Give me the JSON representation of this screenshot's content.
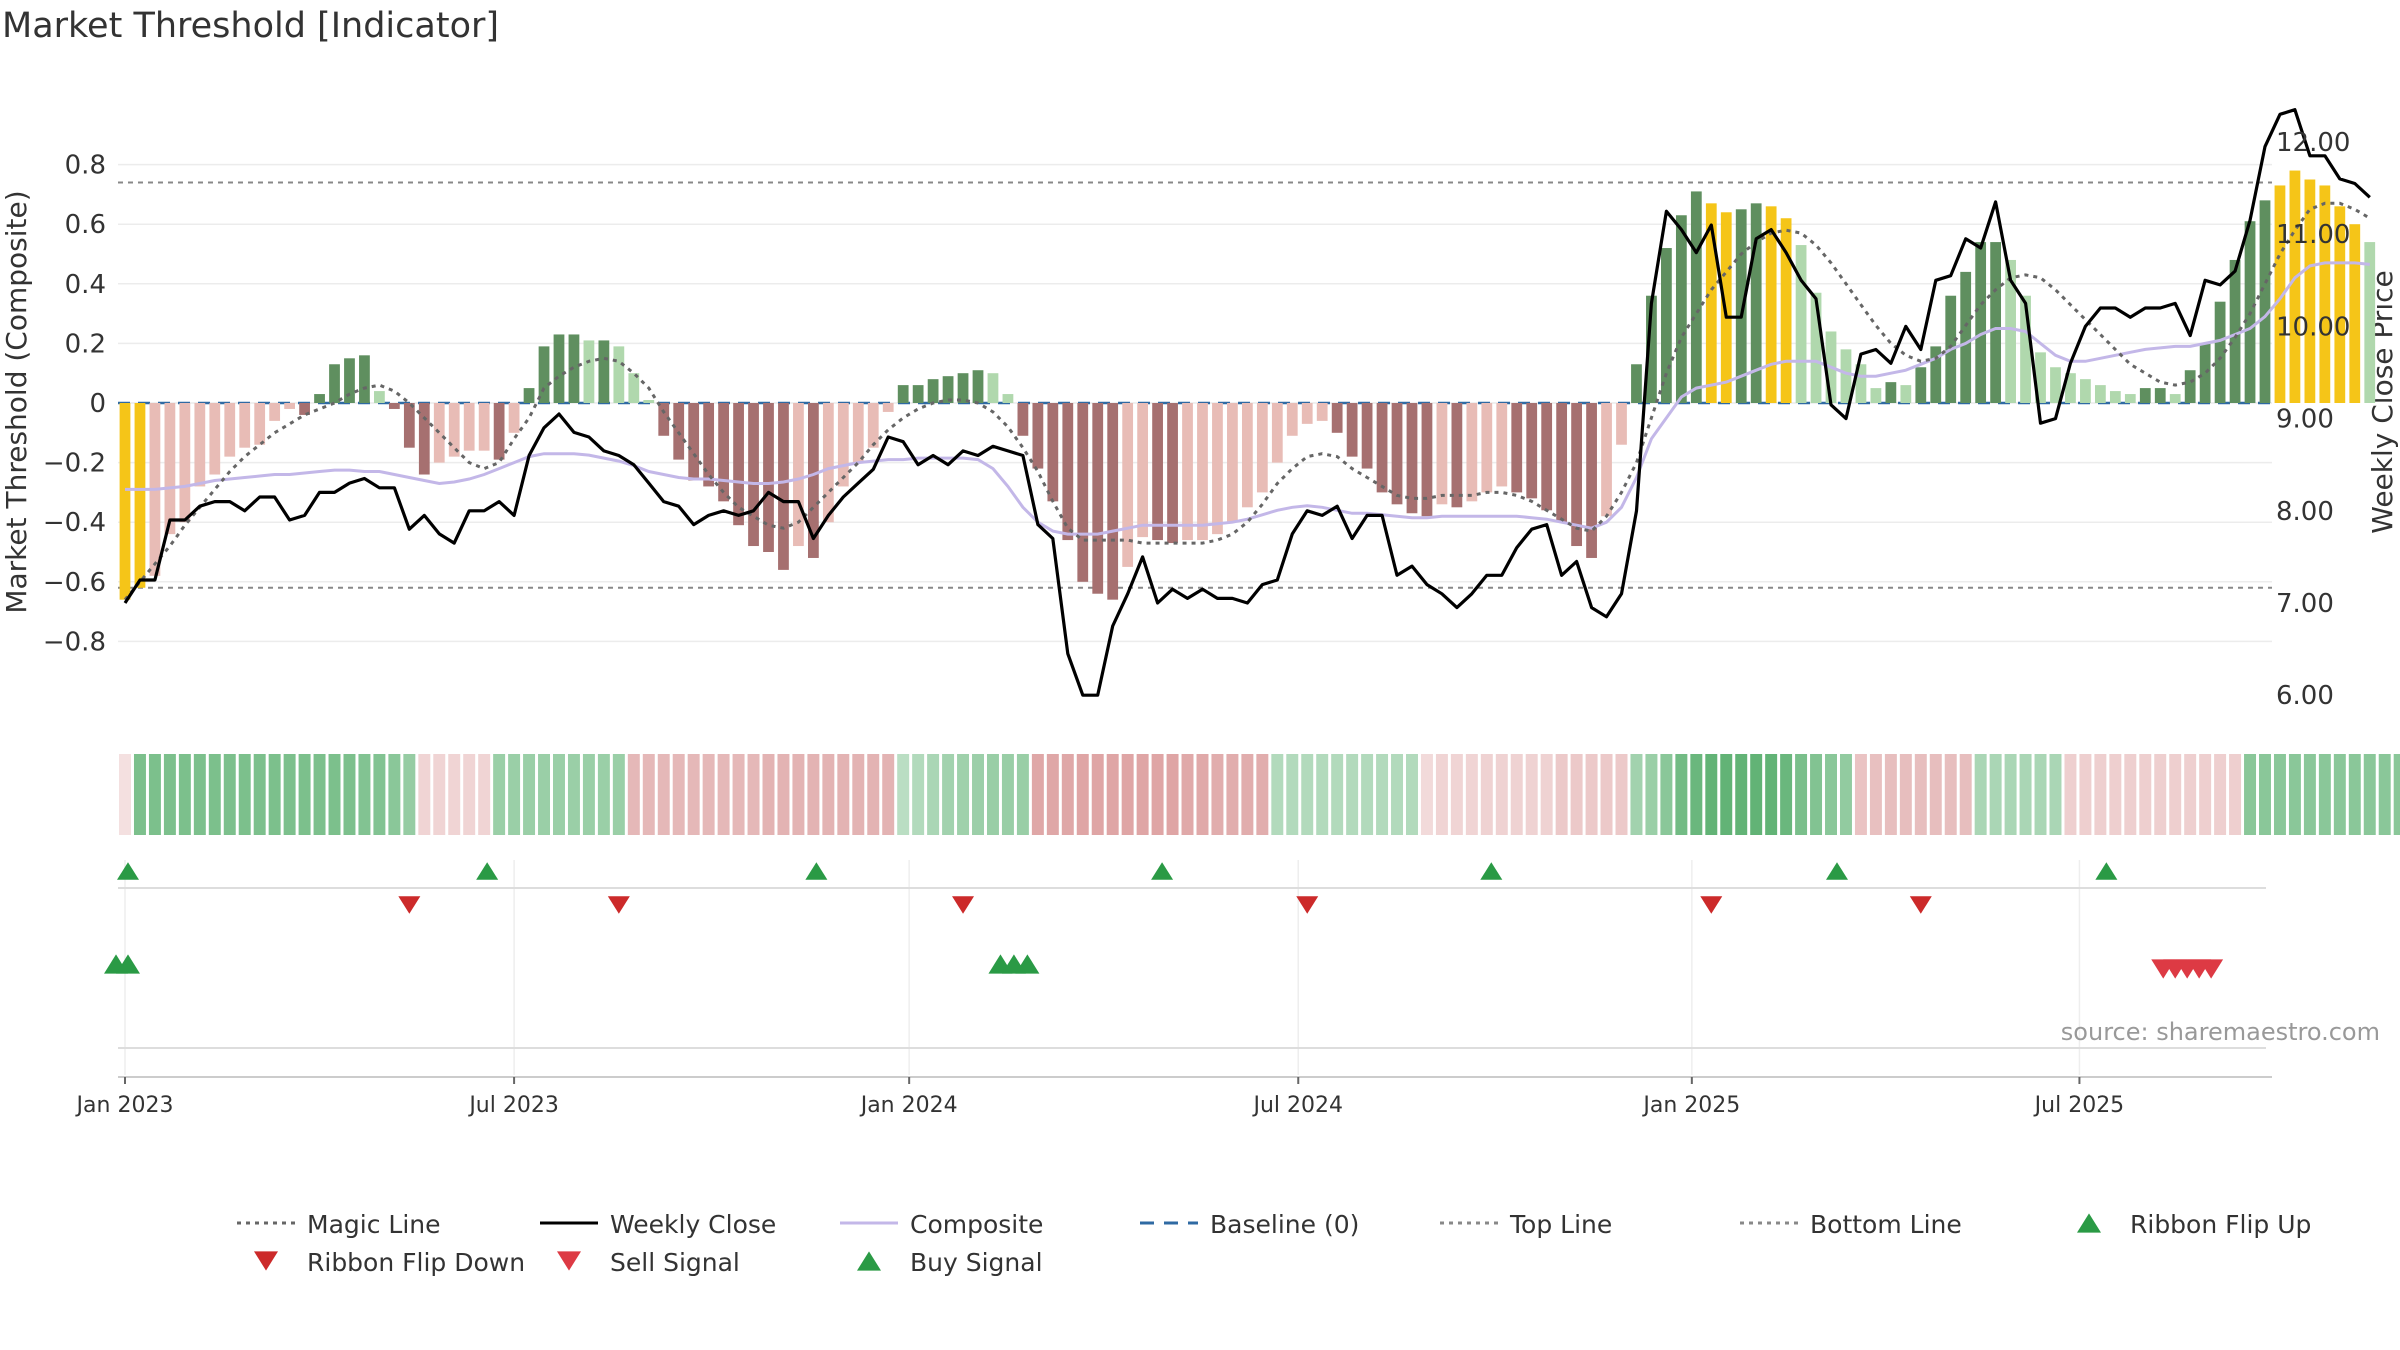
{
  "chart_data": {
    "type": "bar",
    "title": "Market Threshold [Indicator]",
    "ylabel_left": "Market Threshold (Composite)",
    "ylabel_right": "Weekly Close Price",
    "source": "source: sharemaestro.com",
    "ylim_left": [
      -0.85,
      0.85
    ],
    "yticks_left": [
      0.8,
      0.6,
      0.4,
      0.2,
      0,
      -0.2,
      -0.4,
      -0.6,
      -0.8
    ],
    "ytick_labels_left": [
      "0.8",
      "0.6",
      "0.4",
      "0.2",
      "0",
      "−0.2",
      "−0.4",
      "−0.6",
      "−0.8"
    ],
    "ylim_right": [
      5.8,
      12.6
    ],
    "yticks_right": [
      12,
      11,
      10,
      9,
      8,
      7,
      6
    ],
    "ytick_labels_right": [
      "12.00",
      "11.00",
      "10.00",
      "9.00",
      "8.00",
      "7.00",
      "6.00"
    ],
    "x_start": "2022-12-30",
    "weeks": 144,
    "xticks": [
      {
        "label": "Jan 2023",
        "week": 0
      },
      {
        "label": "Jul 2023",
        "week": 26
      },
      {
        "label": "Jan 2024",
        "week": 52.4
      },
      {
        "label": "Jul 2024",
        "week": 78.4
      },
      {
        "label": "Jan 2025",
        "week": 104.7
      },
      {
        "label": "Jul 2025",
        "week": 130.6
      }
    ],
    "top_line": 0.74,
    "bottom_line": -0.62,
    "baseline": 0,
    "composite_bars": [
      -0.66,
      -0.62,
      -0.58,
      -0.44,
      -0.4,
      -0.28,
      -0.24,
      -0.18,
      -0.15,
      -0.14,
      -0.06,
      -0.02,
      -0.04,
      0.03,
      0.13,
      0.15,
      0.16,
      0.04,
      -0.02,
      -0.15,
      -0.24,
      -0.2,
      -0.18,
      -0.16,
      -0.16,
      -0.19,
      -0.1,
      0.05,
      0.19,
      0.23,
      0.23,
      0.21,
      0.21,
      0.19,
      0.1,
      0.01,
      -0.11,
      -0.19,
      -0.26,
      -0.28,
      -0.33,
      -0.41,
      -0.48,
      -0.5,
      -0.56,
      -0.48,
      -0.52,
      -0.4,
      -0.28,
      -0.2,
      -0.15,
      -0.03,
      0.06,
      0.06,
      0.08,
      0.09,
      0.1,
      0.11,
      0.1,
      0.03,
      -0.11,
      -0.22,
      -0.33,
      -0.46,
      -0.6,
      -0.64,
      -0.66,
      -0.55,
      -0.45,
      -0.46,
      -0.47,
      -0.46,
      -0.46,
      -0.44,
      -0.4,
      -0.35,
      -0.3,
      -0.2,
      -0.11,
      -0.07,
      -0.06,
      -0.1,
      -0.18,
      -0.22,
      -0.3,
      -0.34,
      -0.37,
      -0.38,
      -0.34,
      -0.35,
      -0.33,
      -0.3,
      -0.28,
      -0.3,
      -0.32,
      -0.36,
      -0.4,
      -0.48,
      -0.52,
      -0.38,
      -0.14,
      0.13,
      0.36,
      0.52,
      0.63,
      0.71,
      0.67,
      0.64,
      0.65,
      0.67,
      0.66,
      0.62,
      0.53,
      0.37,
      0.24,
      0.18,
      0.13,
      0.05,
      0.07,
      0.06,
      0.12,
      0.19,
      0.36,
      0.44,
      0.54,
      0.54,
      0.48,
      0.36,
      0.17,
      0.12,
      0.1,
      0.08,
      0.06,
      0.04,
      0.03,
      0.05,
      0.05,
      0.03,
      0.11,
      0.2,
      0.34,
      0.48,
      0.61,
      0.68,
      0.73,
      0.78,
      0.75,
      0.73,
      0.66,
      0.6,
      0.54
    ],
    "weekly_close": [
      7.0,
      7.25,
      7.25,
      7.9,
      7.9,
      8.05,
      8.1,
      8.1,
      8.0,
      8.15,
      8.15,
      7.9,
      7.95,
      8.2,
      8.2,
      8.3,
      8.35,
      8.25,
      8.25,
      7.8,
      7.95,
      7.75,
      7.65,
      8.0,
      8.0,
      8.1,
      7.95,
      8.6,
      8.9,
      9.05,
      8.85,
      8.8,
      8.65,
      8.6,
      8.5,
      8.3,
      8.1,
      8.05,
      7.85,
      7.95,
      8.0,
      7.95,
      8.0,
      8.2,
      8.1,
      8.1,
      7.7,
      7.95,
      8.15,
      8.3,
      8.45,
      8.8,
      8.75,
      8.5,
      8.6,
      8.5,
      8.65,
      8.6,
      8.7,
      8.65,
      8.6,
      7.85,
      7.7,
      6.45,
      6.0,
      6.0,
      6.75,
      7.1,
      7.5,
      7.0,
      7.15,
      7.05,
      7.15,
      7.05,
      7.05,
      7.0,
      7.2,
      7.25,
      7.75,
      8.0,
      7.95,
      8.05,
      7.7,
      7.95,
      7.95,
      7.3,
      7.4,
      7.2,
      7.1,
      6.95,
      7.1,
      7.3,
      7.3,
      7.6,
      7.8,
      7.85,
      7.3,
      7.45,
      6.95,
      6.85,
      7.1,
      8.0,
      10.25,
      11.25,
      11.05,
      10.8,
      11.1,
      10.1,
      10.1,
      10.95,
      11.05,
      10.8,
      10.5,
      10.3,
      9.15,
      9.0,
      9.7,
      9.75,
      9.6,
      10.0,
      9.75,
      10.5,
      10.55,
      10.95,
      10.85,
      11.35,
      10.5,
      10.25,
      8.95,
      9.0,
      9.6,
      10.0,
      10.2,
      10.2,
      10.1,
      10.2,
      10.2,
      10.25,
      9.9,
      10.5,
      10.45,
      10.6,
      11.15,
      11.95,
      12.3,
      12.35,
      11.85,
      11.85,
      11.6,
      11.55,
      11.4
    ],
    "composite_line": [
      -0.29,
      -0.29,
      -0.29,
      -0.285,
      -0.28,
      -0.27,
      -0.26,
      -0.255,
      -0.25,
      -0.245,
      -0.24,
      -0.24,
      -0.235,
      -0.23,
      -0.225,
      -0.225,
      -0.23,
      -0.23,
      -0.24,
      -0.25,
      -0.26,
      -0.27,
      -0.265,
      -0.255,
      -0.24,
      -0.22,
      -0.2,
      -0.18,
      -0.17,
      -0.17,
      -0.17,
      -0.175,
      -0.185,
      -0.195,
      -0.21,
      -0.23,
      -0.24,
      -0.25,
      -0.255,
      -0.255,
      -0.26,
      -0.265,
      -0.27,
      -0.27,
      -0.265,
      -0.255,
      -0.24,
      -0.22,
      -0.21,
      -0.2,
      -0.195,
      -0.19,
      -0.19,
      -0.185,
      -0.185,
      -0.185,
      -0.185,
      -0.19,
      -0.22,
      -0.28,
      -0.35,
      -0.4,
      -0.43,
      -0.44,
      -0.44,
      -0.44,
      -0.43,
      -0.42,
      -0.41,
      -0.41,
      -0.41,
      -0.41,
      -0.41,
      -0.405,
      -0.4,
      -0.39,
      -0.375,
      -0.36,
      -0.35,
      -0.345,
      -0.35,
      -0.36,
      -0.37,
      -0.37,
      -0.375,
      -0.38,
      -0.385,
      -0.385,
      -0.38,
      -0.38,
      -0.38,
      -0.38,
      -0.38,
      -0.38,
      -0.385,
      -0.39,
      -0.4,
      -0.41,
      -0.42,
      -0.4,
      -0.35,
      -0.25,
      -0.12,
      -0.05,
      0.02,
      0.05,
      0.06,
      0.07,
      0.09,
      0.11,
      0.13,
      0.14,
      0.14,
      0.14,
      0.12,
      0.1,
      0.09,
      0.09,
      0.1,
      0.11,
      0.13,
      0.15,
      0.18,
      0.2,
      0.23,
      0.25,
      0.25,
      0.24,
      0.2,
      0.16,
      0.14,
      0.14,
      0.15,
      0.16,
      0.17,
      0.18,
      0.185,
      0.19,
      0.19,
      0.2,
      0.21,
      0.23,
      0.25,
      0.29,
      0.35,
      0.42,
      0.46,
      0.47,
      0.47,
      0.47,
      0.465
    ],
    "magic_line": [
      -0.66,
      -0.6,
      -0.54,
      -0.48,
      -0.41,
      -0.35,
      -0.29,
      -0.23,
      -0.18,
      -0.14,
      -0.1,
      -0.07,
      -0.04,
      -0.02,
      0.0,
      0.03,
      0.05,
      0.06,
      0.04,
      0.0,
      -0.05,
      -0.1,
      -0.15,
      -0.2,
      -0.22,
      -0.2,
      -0.12,
      -0.05,
      0.05,
      0.09,
      0.12,
      0.14,
      0.15,
      0.14,
      0.1,
      0.05,
      -0.03,
      -0.1,
      -0.17,
      -0.24,
      -0.3,
      -0.35,
      -0.38,
      -0.41,
      -0.42,
      -0.4,
      -0.35,
      -0.3,
      -0.25,
      -0.2,
      -0.14,
      -0.09,
      -0.05,
      -0.02,
      0.0,
      0.01,
      0.01,
      0.0,
      -0.03,
      -0.08,
      -0.15,
      -0.23,
      -0.33,
      -0.42,
      -0.46,
      -0.46,
      -0.46,
      -0.46,
      -0.47,
      -0.47,
      -0.47,
      -0.47,
      -0.47,
      -0.46,
      -0.44,
      -0.4,
      -0.34,
      -0.27,
      -0.22,
      -0.18,
      -0.17,
      -0.18,
      -0.22,
      -0.25,
      -0.28,
      -0.31,
      -0.32,
      -0.32,
      -0.31,
      -0.31,
      -0.31,
      -0.3,
      -0.3,
      -0.31,
      -0.33,
      -0.36,
      -0.39,
      -0.42,
      -0.43,
      -0.38,
      -0.3,
      -0.2,
      -0.05,
      0.1,
      0.22,
      0.3,
      0.38,
      0.44,
      0.5,
      0.54,
      0.57,
      0.58,
      0.57,
      0.53,
      0.47,
      0.4,
      0.33,
      0.26,
      0.2,
      0.16,
      0.14,
      0.15,
      0.19,
      0.26,
      0.33,
      0.38,
      0.42,
      0.43,
      0.42,
      0.38,
      0.33,
      0.28,
      0.23,
      0.18,
      0.13,
      0.1,
      0.07,
      0.06,
      0.07,
      0.1,
      0.15,
      0.22,
      0.3,
      0.4,
      0.5,
      0.58,
      0.65,
      0.67,
      0.67,
      0.65,
      0.62
    ],
    "ribbon": [
      -0.1,
      0.64,
      0.64,
      0.64,
      0.64,
      0.64,
      0.64,
      0.64,
      0.64,
      0.64,
      0.64,
      0.64,
      0.64,
      0.64,
      0.64,
      0.64,
      0.6,
      0.6,
      0.55,
      0.48,
      -0.2,
      -0.2,
      -0.2,
      -0.2,
      -0.2,
      0.45,
      0.45,
      0.45,
      0.45,
      0.45,
      0.45,
      0.45,
      0.45,
      0.45,
      -0.45,
      -0.45,
      -0.45,
      -0.45,
      -0.45,
      -0.45,
      -0.45,
      -0.45,
      -0.45,
      -0.5,
      -0.5,
      -0.5,
      -0.5,
      -0.5,
      -0.5,
      -0.5,
      -0.5,
      -0.5,
      0.25,
      0.3,
      0.35,
      0.4,
      0.42,
      0.44,
      0.46,
      0.46,
      0.46,
      -0.6,
      -0.6,
      -0.6,
      -0.62,
      -0.62,
      -0.62,
      -0.62,
      -0.62,
      -0.62,
      -0.62,
      -0.58,
      -0.58,
      -0.55,
      -0.55,
      -0.55,
      -0.55,
      0.3,
      0.3,
      0.3,
      0.3,
      0.3,
      0.3,
      0.3,
      0.3,
      0.3,
      0.3,
      -0.15,
      -0.2,
      -0.2,
      -0.2,
      -0.22,
      -0.22,
      -0.22,
      -0.22,
      -0.22,
      -0.3,
      -0.3,
      -0.3,
      -0.3,
      -0.3,
      0.4,
      0.45,
      0.55,
      0.7,
      0.75,
      0.8,
      0.8,
      0.8,
      0.8,
      0.8,
      0.75,
      0.65,
      0.6,
      0.55,
      0.5,
      -0.35,
      -0.38,
      -0.4,
      -0.4,
      -0.4,
      -0.4,
      -0.4,
      -0.4,
      0.35,
      0.35,
      0.35,
      0.35,
      0.35,
      0.35,
      -0.25,
      -0.25,
      -0.25,
      -0.25,
      -0.25,
      -0.25,
      -0.25,
      -0.25,
      -0.25,
      -0.25,
      -0.25,
      -0.25,
      0.55,
      0.55,
      0.55,
      0.55,
      0.55,
      0.55,
      0.55,
      0.55,
      0.55,
      0.55,
      0.55
    ],
    "ribbon_flip_up": [
      0.2,
      24.2,
      46.2,
      69.3,
      91.3,
      114.4,
      132.4
    ],
    "ribbon_flip_down": [
      19,
      33,
      56,
      79,
      106,
      120
    ],
    "buy_signals": [
      -0.6,
      0.2,
      58.5,
      59.4,
      60.3
    ],
    "sell_signals": [
      136.2,
      137.0,
      137.8,
      138.6,
      139.4
    ],
    "legend": [
      {
        "label": "Magic Line",
        "kind": "dotted",
        "color": "#666666"
      },
      {
        "label": "Weekly Close",
        "kind": "line",
        "color": "#000000"
      },
      {
        "label": "Composite",
        "kind": "line",
        "color": "#c3b7e8"
      },
      {
        "label": "Baseline (0)",
        "kind": "dashed",
        "color": "#2f6aa3"
      },
      {
        "label": "Top Line",
        "kind": "dotted",
        "color": "#888888"
      },
      {
        "label": "Bottom Line",
        "kind": "dotted",
        "color": "#888888"
      },
      {
        "label": "Ribbon Flip Up",
        "kind": "tri-up",
        "color": "#2a9a45"
      },
      {
        "label": "Ribbon Flip Down",
        "kind": "tri-down",
        "color": "#cc2a2a"
      },
      {
        "label": "Sell Signal",
        "kind": "tri-down",
        "color": "#dd3a44"
      },
      {
        "label": "Buy Signal",
        "kind": "tri-up",
        "color": "#2a9a45"
      }
    ],
    "colors": {
      "extreme": "#f5c518",
      "pos_strong": "#5f8f5f",
      "pos_weak": "#b0d8ad",
      "neg_strong": "#a67070",
      "neg_weak": "#e8bcb6",
      "ribbon_green": "#42a45a",
      "ribbon_red": "#cf7a7a"
    }
  }
}
